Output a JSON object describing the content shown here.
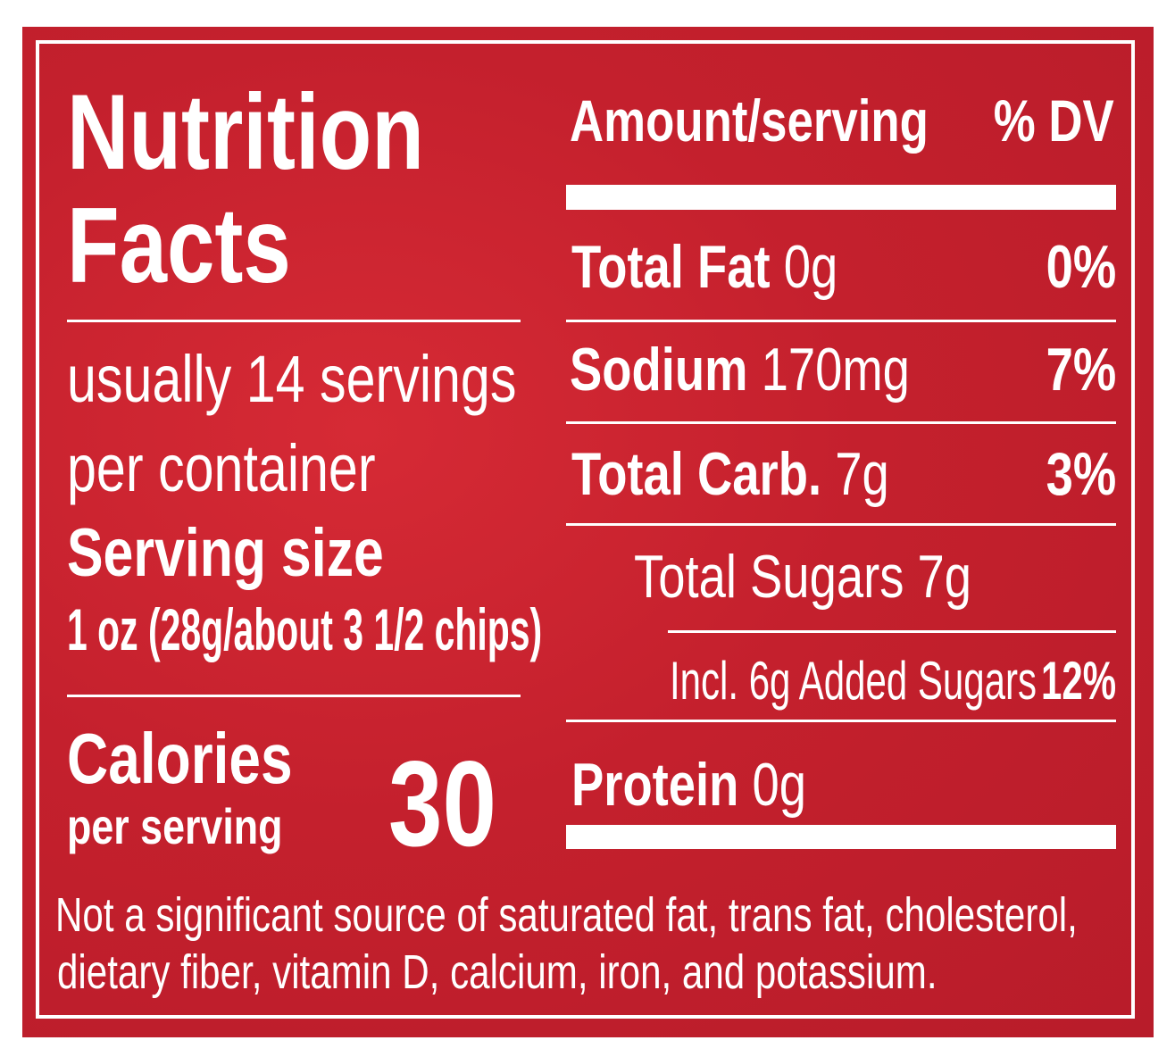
{
  "label": {
    "title": [
      "Nutrition",
      "Facts"
    ],
    "servings": [
      "usually 14 servings",
      "per container"
    ],
    "serving_size_label": "Serving size",
    "serving_size": "1 oz (28g/about 3 1/2 chips)",
    "calories_label": "Calories",
    "calories_sublabel": "per serving",
    "calories": "30",
    "header": {
      "amount": "Amount/serving",
      "dv": "% DV"
    },
    "rows": [
      {
        "name": "Total Fat",
        "amount": "0g",
        "dv": "0%"
      },
      {
        "name": "Sodium",
        "amount": "170mg",
        "dv": "7%"
      },
      {
        "name": "Total Carb.",
        "amount": "7g",
        "dv": "3%"
      },
      {
        "name": "Total Sugars",
        "amount": "7g"
      },
      {
        "name": "Incl. 6g Added Sugars",
        "dv": "12%"
      },
      {
        "name": "Protein",
        "amount": "0g"
      }
    ],
    "footnote": [
      "Not a significant source of saturated fat, trans fat, cholesterol,",
      "dietary fiber, vitamin D, calcium, iron, and potassium."
    ]
  }
}
